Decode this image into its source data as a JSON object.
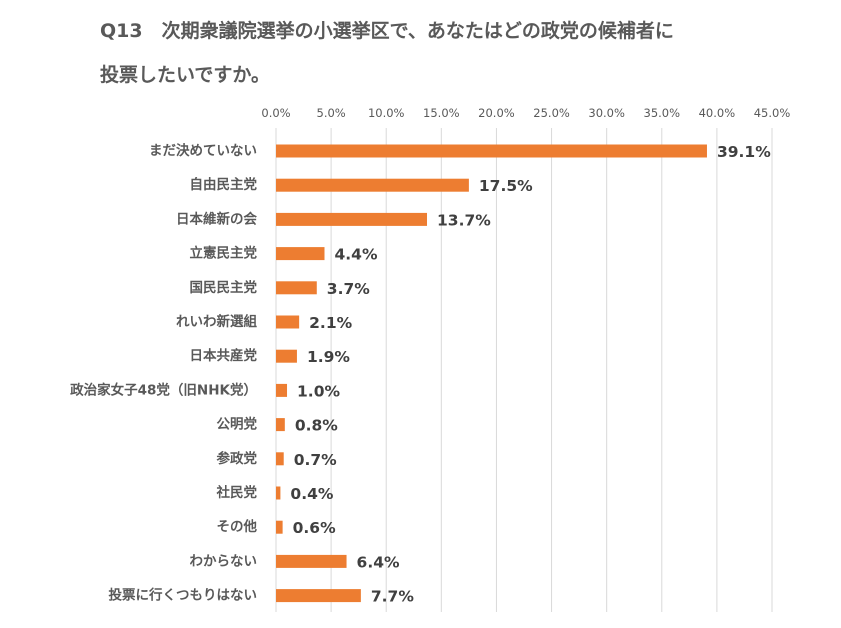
{
  "chart_data": {
    "type": "bar",
    "orientation": "horizontal",
    "title_line1": "Q13　次期衆議院選挙の小選挙区で、あなたはどの政党の候補者に",
    "title_line2": "投票したいですか。",
    "categories": [
      "まだ決めていない",
      "自由民主党",
      "日本維新の会",
      "立憲民主党",
      "国民民主党",
      "れいわ新選組",
      "日本共産党",
      "政治家女子48党（旧NHK党）",
      "公明党",
      "参政党",
      "社民党",
      "その他",
      "わからない",
      "投票に行くつもりはない"
    ],
    "values": [
      39.1,
      17.5,
      13.7,
      4.4,
      3.7,
      2.1,
      1.9,
      1.0,
      0.8,
      0.7,
      0.4,
      0.6,
      6.4,
      7.7
    ],
    "data_labels": [
      "39.1%",
      "17.5%",
      "13.7%",
      "4.4%",
      "3.7%",
      "2.1%",
      "1.9%",
      "1.0%",
      "0.8%",
      "0.7%",
      "0.4%",
      "0.6%",
      "6.4%",
      "7.7%"
    ],
    "x_ticks": [
      "0.0%",
      "5.0%",
      "10.0%",
      "15.0%",
      "20.0%",
      "25.0%",
      "30.0%",
      "35.0%",
      "40.0%",
      "45.0%"
    ],
    "xlim": [
      0,
      45
    ],
    "xaxis_position": "top",
    "grid": true,
    "legend": "none",
    "bar_color": "#ED7D31"
  }
}
